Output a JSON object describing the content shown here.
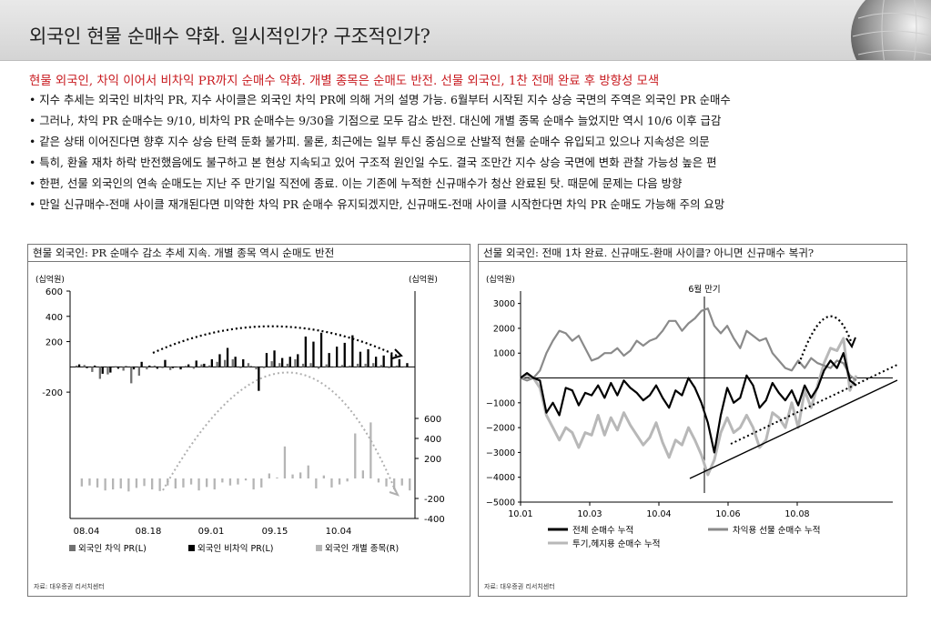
{
  "header": {
    "title": "외국인 현물 순매수 약화. 일시적인가? 구조적인가?"
  },
  "headline": "현물 외국인, 차익 이어서 비차익 PR까지 순매수 약화. 개별 종목은 순매도 반전. 선물 외국인, 1찬 전매 완료 후 방향성 모색",
  "bullets": [
    "지수 추세는 외국인 비차익 PR, 지수 사이클은 외국인 차익 PR에 의해 거의 설명 가능. 6월부터 시작된 지수 상승 국면의 주역은 외국인 PR 순매수",
    "그러나, 차익 PR 순매수는 9/10, 비차익 PR 순매수는 9/30을 기점으로 모두 감소 반전. 대신에 개별 종목 순매수 늘었지만 역시 10/6 이후 급감",
    "같은 상태 이어진다면 향후 지수 상승 탄력 둔화 불가피. 물론, 최근에는 일부 투신 중심으로 산발적 현물 순매수 유입되고 있으나 지속성은 의문",
    "특히, 환율 재차 하락 반전했음에도 불구하고 본 현상 지속되고 있어 구조적 원인일 수도. 결국 조만간 지수 상승 국면에 변화 관찰 가능성 높은 편",
    "한편, 선물 외국인의 연속 순매도는 지난 주 만기일 직전에 종료. 이는 기존에 누적한 신규매수가 청산 완료된 탓. 때문에 문제는 다음 방향",
    "만일 신규매수-전매 사이클 재개된다면 미약한 차익 PR 순매수 유지되겠지만, 신규매도-전매 사이클 시작한다면 차익 PR 순매도 가능해 주의 요망"
  ],
  "left_panel": {
    "title": "현물 외국인: PR 순매수 감소 추세 지속. 개별 종목 역시 순매도 반전",
    "source": "자료: 대우증권 리서치센터"
  },
  "right_panel": {
    "title": "선물 외국인: 전매 1차 완료. 신규매도-환매 사이클? 아니면 신규매수 복귀?",
    "source": "자료: 대우증권 리서치센터"
  },
  "chart_data": [
    {
      "type": "bar",
      "left_unit": "(십억원)",
      "right_unit": "(십억원)",
      "y_left_ticks": [
        "600",
        "400",
        "200",
        "-200",
        "-400"
      ],
      "y_left_range": [
        -1200,
        600
      ],
      "y_right_ticks": [
        "600",
        "400",
        "200",
        "-200",
        "-400"
      ],
      "y_right_range": [
        -400,
        800
      ],
      "x_ticks": [
        "08.04",
        "08.18",
        "09.01",
        "09.15",
        "10.04"
      ],
      "legend": [
        {
          "label": "외국인 차익 PR(L)",
          "color": "#707070"
        },
        {
          "label": "외국인 비차익 PR(L)",
          "color": "#000000"
        },
        {
          "label": "외국인 개별 종목(R)",
          "color": "#b5b5b5"
        }
      ],
      "series": [
        {
          "name": "외국인 차익 PR(L)",
          "axis": "left",
          "values": [
            10,
            15,
            -40,
            -95,
            -60,
            5,
            -30,
            -130,
            -70,
            -20,
            10,
            -10,
            -25,
            -5,
            8,
            -15,
            20,
            12,
            40,
            55,
            60,
            -10,
            30,
            -20,
            -10,
            45,
            30,
            25,
            60,
            25,
            30,
            -15,
            20,
            -5,
            15,
            10,
            25,
            25,
            30,
            15,
            -10,
            10,
            5
          ]
        },
        {
          "name": "외국인 비차익 PR(L)",
          "axis": "left",
          "values": [
            20,
            -10,
            10,
            -55,
            -45,
            -15,
            5,
            -20,
            40,
            10,
            -15,
            55,
            -10,
            -20,
            20,
            50,
            25,
            60,
            100,
            150,
            80,
            60,
            5,
            -190,
            110,
            130,
            70,
            80,
            100,
            240,
            200,
            270,
            110,
            160,
            190,
            250,
            120,
            140,
            80,
            90,
            100,
            60,
            30
          ]
        },
        {
          "name": "외국인 개별 종목(R)",
          "axis": "right",
          "values": [
            -80,
            -70,
            -90,
            -120,
            -110,
            -100,
            -130,
            -95,
            -75,
            -110,
            -125,
            -70,
            -100,
            -90,
            -60,
            -120,
            -85,
            -110,
            -40,
            -70,
            -60,
            -20,
            -110,
            -90,
            50,
            10,
            320,
            40,
            60,
            130,
            -100,
            30,
            -90,
            -60,
            -30,
            450,
            80,
            560,
            -40,
            -80,
            -110,
            -70,
            -120
          ]
        }
      ],
      "annotations": [
        "black dotted arc trend",
        "grey dotted arc trend"
      ]
    },
    {
      "type": "line",
      "unit": "(십억원)",
      "annotation": "6월 만기",
      "y_ticks": [
        "3000",
        "2000",
        "1000",
        "−1000",
        "−2000",
        "−3000",
        "−4000",
        "−5000"
      ],
      "y_range": [
        -5000,
        3500
      ],
      "x_ticks": [
        "10.01",
        "10.03",
        "10.04",
        "10.06",
        "10.08"
      ],
      "legend": [
        {
          "label": "전체 순매수 누적",
          "color": "#000000"
        },
        {
          "label": "차익용 선물 순매수 누적",
          "color": "#8a8a8a"
        },
        {
          "label": "투기,헤지용 순매수 누적",
          "color": "#b8b8b8"
        }
      ],
      "series": [
        {
          "name": "전체 순매수 누적",
          "values": [
            0,
            200,
            0,
            -100,
            -1400,
            -1000,
            -1500,
            -400,
            -500,
            -1100,
            -600,
            -700,
            -300,
            -800,
            -200,
            -700,
            -100,
            -400,
            -600,
            -900,
            -700,
            -300,
            -800,
            -1200,
            -500,
            -700,
            0,
            -400,
            -1000,
            -1800,
            -3000,
            -1500,
            -400,
            -1000,
            -800,
            100,
            -300,
            -1200,
            -900,
            -200,
            -600,
            -900,
            -500,
            -1100,
            -300,
            -800,
            -400,
            300,
            700,
            400,
            1000,
            -100,
            -300
          ]
        },
        {
          "name": "차익용 선물 순매수 누적",
          "values": [
            0,
            -100,
            0,
            300,
            1000,
            1500,
            1900,
            1800,
            1500,
            1700,
            1200,
            700,
            800,
            1000,
            1000,
            1200,
            900,
            1100,
            1500,
            1300,
            1500,
            1600,
            1900,
            2300,
            2300,
            1900,
            2200,
            2400,
            2700,
            2800,
            2100,
            1800,
            2100,
            1600,
            1200,
            1900,
            1700,
            1500,
            1600,
            1000,
            700,
            400,
            300,
            700,
            400,
            800,
            600,
            500,
            400,
            700,
            600,
            100,
            -100
          ]
        },
        {
          "name": "투기,헤지용 순매수 누적",
          "values": [
            0,
            100,
            0,
            -400,
            -1500,
            -2000,
            -2500,
            -2000,
            -2200,
            -2800,
            -2200,
            -2300,
            -1500,
            -2300,
            -1600,
            -2100,
            -1400,
            -1900,
            -2300,
            -2700,
            -2400,
            -1800,
            -2600,
            -3200,
            -2500,
            -2700,
            -2000,
            -2500,
            -3100,
            -3900,
            -3300,
            -2200,
            -1600,
            -2200,
            -2000,
            -1500,
            -2000,
            -2800,
            -2500,
            -1400,
            -1600,
            -2000,
            -1000,
            -2000,
            -500,
            -1200,
            -300,
            600,
            1200,
            1100,
            1600,
            -500,
            100
          ]
        }
      ]
    }
  ]
}
